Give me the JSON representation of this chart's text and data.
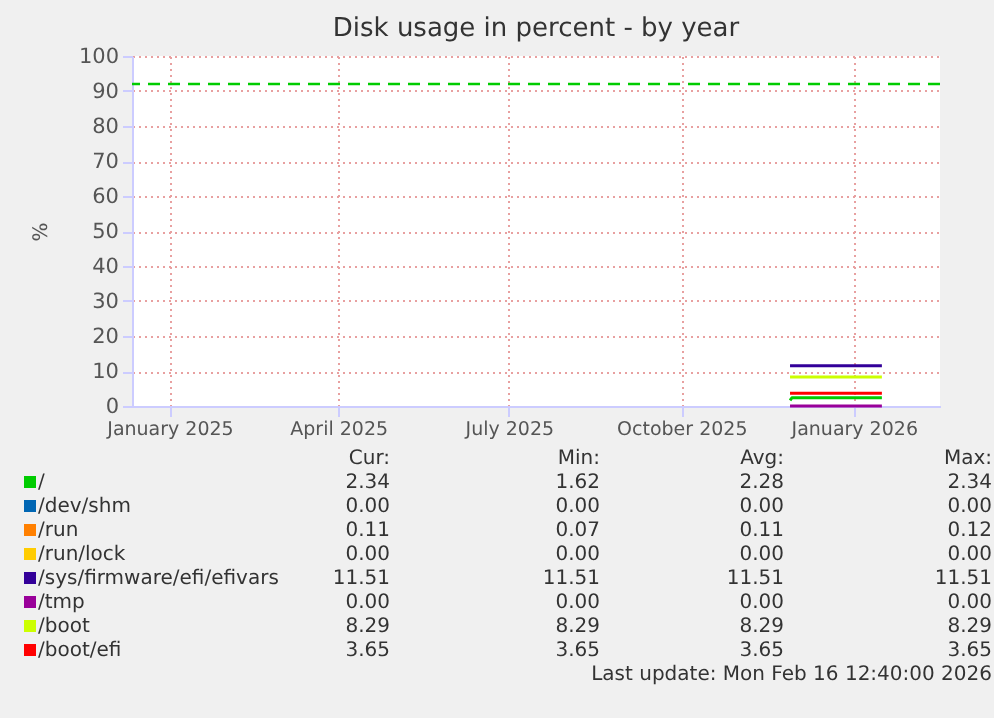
{
  "chart_data": {
    "type": "line",
    "title": "Disk usage in percent - by year",
    "ylabel": "%",
    "xlim": [
      "2024-12-12",
      "2026-02-16"
    ],
    "ylim": [
      0,
      100
    ],
    "xticks": [
      {
        "value": "2025-01-01",
        "label": "January 2025"
      },
      {
        "value": "2025-04-01",
        "label": "April 2025"
      },
      {
        "value": "2025-07-01",
        "label": "July 2025"
      },
      {
        "value": "2025-10-01",
        "label": "October 2025"
      },
      {
        "value": "2026-01-01",
        "label": "January 2026"
      }
    ],
    "yticks": [
      0,
      10,
      20,
      30,
      40,
      50,
      60,
      70,
      80,
      90,
      100
    ],
    "grid": true,
    "legend": "bottom",
    "series": [
      {
        "name": "/",
        "color": "#00cc00",
        "x": [
          "2025-11-28",
          "2025-11-29",
          "2026-01-16"
        ],
        "values": [
          1.62,
          2.34,
          2.34
        ]
      },
      {
        "name": "/dev/shm",
        "color": "#0066b3",
        "values": [
          null
        ]
      },
      {
        "name": "/run",
        "color": "#ff8000",
        "values": [
          null
        ]
      },
      {
        "name": "/run/lock",
        "color": "#ffcc00",
        "values": [
          null
        ]
      },
      {
        "name": "/sys/firmware/efi/efivars",
        "color": "#330099",
        "x": [
          "2025-11-28",
          "2026-01-16"
        ],
        "values": [
          11.51,
          11.51
        ]
      },
      {
        "name": "/tmp",
        "color": "#990099",
        "x": [
          "2025-11-28",
          "2026-01-16"
        ],
        "values": [
          0,
          0
        ]
      },
      {
        "name": "/boot",
        "color": "#ccff00",
        "x": [
          "2025-11-28",
          "2026-01-16"
        ],
        "values": [
          8.29,
          8.29
        ]
      },
      {
        "name": "/boot/efi",
        "color": "#ff0000",
        "x": [
          "2025-11-28",
          "2026-01-16"
        ],
        "values": [
          3.65,
          3.65
        ]
      }
    ],
    "ref_lines": [
      {
        "axis": "y",
        "value": 92,
        "color": "#00cc00",
        "line_style": "dashed"
      }
    ],
    "annotations": [
      "Cur:",
      "Min:",
      "Avg:",
      "Max:",
      "2.34",
      "1.62",
      "2.28",
      "2.34",
      "0.00",
      "0.00",
      "0.00",
      "0.00",
      "0.11",
      "0.07",
      "0.11",
      "0.12",
      "0.00",
      "0.00",
      "0.00",
      "0.00",
      "11.51",
      "11.51",
      "11.51",
      "11.51",
      "0.00",
      "0.00",
      "0.00",
      "0.00",
      "8.29",
      "8.29",
      "8.29",
      "8.29",
      "3.65",
      "3.65",
      "3.65",
      "3.65",
      "Last update: Mon Feb 16 12:40:00 2026"
    ]
  }
}
